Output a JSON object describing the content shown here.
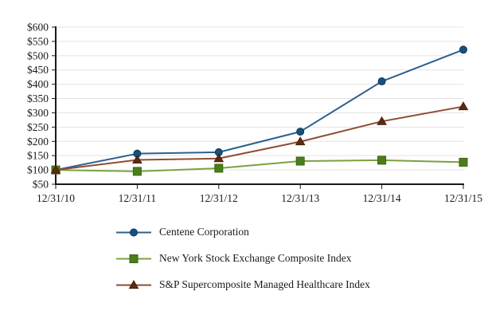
{
  "chart_data": {
    "type": "line",
    "title": "",
    "xlabel": "",
    "ylabel": "",
    "x_categories": [
      "12/31/10",
      "12/31/11",
      "12/31/12",
      "12/31/13",
      "12/31/14",
      "12/31/15"
    ],
    "series": [
      {
        "name": "Centene Corporation",
        "marker": "circle",
        "line_color": "#2a5f8e",
        "marker_fill": "#17507e",
        "marker_border": "#0d3a5e",
        "values": [
          100,
          157,
          162,
          234,
          410,
          521
        ]
      },
      {
        "name": "New York Stock Exchange Composite Index",
        "marker": "square",
        "line_color": "#7ba23f",
        "marker_fill": "#4c7d1b",
        "marker_border": "#3c650e",
        "values": [
          100,
          95,
          106,
          131,
          134,
          127
        ]
      },
      {
        "name": "S&P Supercomposite Managed Healthcare Index",
        "marker": "triangle",
        "line_color": "#8e4d33",
        "marker_fill": "#5e2912",
        "marker_border": "#491f0b",
        "values": [
          100,
          135,
          140,
          199,
          270,
          322
        ]
      }
    ],
    "ylim": [
      50,
      600
    ],
    "ytick_step": 50,
    "ytick_prefix": "$",
    "grid": true,
    "grid_color": "#e3e3e3",
    "axis_color": "#1a1a1a",
    "legend_position": "bottom-left"
  }
}
